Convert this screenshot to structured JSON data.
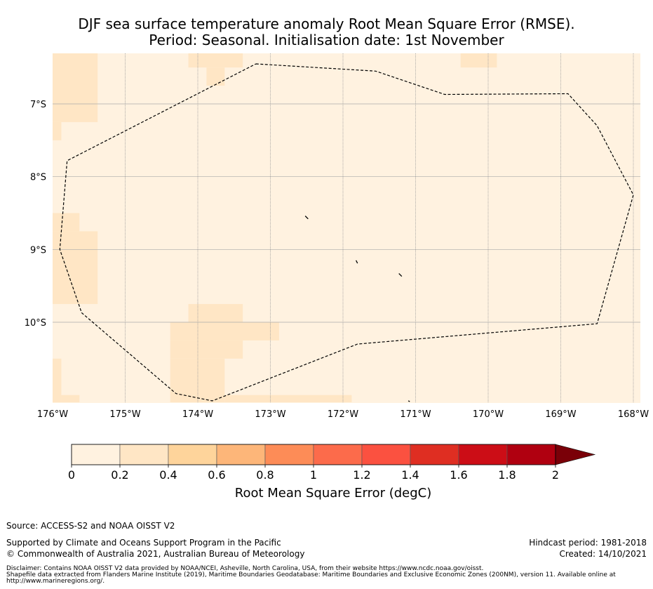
{
  "title": {
    "line1": "DJF sea surface temperature anomaly Root Mean Square Error (RMSE).",
    "line2": "Period: Seasonal. Initialisation date: 1st November"
  },
  "map": {
    "lon_range": [
      -176,
      -168
    ],
    "lat_range": [
      -11.1,
      -6.3
    ],
    "lon_ticks": [
      {
        "value": -176,
        "label": "176°W"
      },
      {
        "value": -175,
        "label": "175°W"
      },
      {
        "value": -174,
        "label": "174°W"
      },
      {
        "value": -173,
        "label": "173°W"
      },
      {
        "value": -172,
        "label": "172°W"
      },
      {
        "value": -171,
        "label": "171°W"
      },
      {
        "value": -170,
        "label": "170°W"
      },
      {
        "value": -169,
        "label": "169°W"
      },
      {
        "value": -168,
        "label": "168°W"
      }
    ],
    "lat_ticks": [
      {
        "value": -7,
        "label": "7°S"
      },
      {
        "value": -8,
        "label": "8°S"
      },
      {
        "value": -9,
        "label": "9°S"
      },
      {
        "value": -10,
        "label": "10°S"
      }
    ],
    "background_color": "#fff2e0",
    "higher_error_color": "#ffe6c5",
    "higher_error_cells": [
      [
        -176.0,
        -6.3,
        -175.38,
        -7.25
      ],
      [
        -176.0,
        -7.25,
        -175.88,
        -7.5
      ],
      [
        -174.13,
        -6.3,
        -173.38,
        -6.5
      ],
      [
        -173.88,
        -6.5,
        -173.63,
        -6.75
      ],
      [
        -170.38,
        -6.3,
        -169.88,
        -6.5
      ],
      [
        -176.0,
        -8.5,
        -175.63,
        -8.75
      ],
      [
        -176.0,
        -8.75,
        -175.38,
        -9.75
      ],
      [
        -174.13,
        -9.75,
        -173.38,
        -10.0
      ],
      [
        -174.38,
        -10.0,
        -172.88,
        -10.25
      ],
      [
        -174.38,
        -10.25,
        -173.38,
        -10.5
      ],
      [
        -174.38,
        -10.5,
        -173.63,
        -11.1
      ],
      [
        -176.0,
        -10.5,
        -175.88,
        -11.1
      ],
      [
        -175.88,
        -11.0,
        -175.63,
        -11.1
      ],
      [
        -173.63,
        -11.0,
        -171.88,
        -11.1
      ]
    ],
    "eez_boundary": [
      [
        -173.2,
        -6.45
      ],
      [
        -171.55,
        -6.55
      ],
      [
        -170.6,
        -6.87
      ],
      [
        -168.9,
        -6.86
      ],
      [
        -168.5,
        -7.3
      ],
      [
        -168.0,
        -8.25
      ],
      [
        -168.5,
        -10.02
      ],
      [
        -171.8,
        -10.3
      ],
      [
        -173.8,
        -11.08
      ],
      [
        -174.3,
        -10.98
      ],
      [
        -175.6,
        -9.87
      ],
      [
        -175.9,
        -9.0
      ],
      [
        -175.8,
        -7.78
      ],
      [
        -173.2,
        -6.45
      ]
    ],
    "islands": [
      [
        [
          -172.52,
          -8.54
        ],
        [
          -172.48,
          -8.58
        ]
      ],
      [
        [
          -171.82,
          -9.15
        ],
        [
          -171.8,
          -9.19
        ]
      ],
      [
        [
          -171.23,
          -9.33
        ],
        [
          -171.19,
          -9.37
        ]
      ],
      [
        [
          -171.1,
          -11.08
        ],
        [
          -171.08,
          -11.09
        ]
      ]
    ]
  },
  "colorbar": {
    "ticks": [
      {
        "value": 0,
        "label": "0"
      },
      {
        "value": 0.2,
        "label": "0.2"
      },
      {
        "value": 0.4,
        "label": "0.4"
      },
      {
        "value": 0.6,
        "label": "0.6"
      },
      {
        "value": 0.8,
        "label": "0.8"
      },
      {
        "value": 1,
        "label": "1"
      },
      {
        "value": 1.2,
        "label": "1.2"
      },
      {
        "value": 1.4,
        "label": "1.4"
      },
      {
        "value": 1.6,
        "label": "1.6"
      },
      {
        "value": 1.8,
        "label": "1.8"
      },
      {
        "value": 2,
        "label": "2"
      }
    ],
    "colors": [
      "#fff2e0",
      "#ffe6c5",
      "#fed49b",
      "#fdb679",
      "#fd8c57",
      "#fc6b4b",
      "#fb5140",
      "#df2e22",
      "#cc0d16",
      "#b00010"
    ],
    "extend_color": "#7a0008",
    "label": "Root Mean Square Error (degC)"
  },
  "footer": {
    "source": "Source: ACCESS-S2 and NOAA OISST V2",
    "supported": "Supported by Climate and Oceans Support Program in the Pacific",
    "copyright": "© Commonwealth of Australia 2021, Australian Bureau of Meteorology",
    "hindcast": "Hindcast period: 1981-2018",
    "created": "Created: 14/10/2021",
    "disclaimer1": "Disclaimer: Contains NOAA OISST V2 data provided by NOAA/NCEI, Asheville, North Carolina, USA, from their website https://www.ncdc.noaa.gov/oisst.",
    "disclaimer2": "Shapefile data extracted from Flanders Marine Institute (2019), Maritime Boundaries Geodatabase: Maritime Boundaries and Exclusive Economic Zones (200NM), version 11. Available online at",
    "disclaimer3": "http://www.marineregions.org/."
  }
}
